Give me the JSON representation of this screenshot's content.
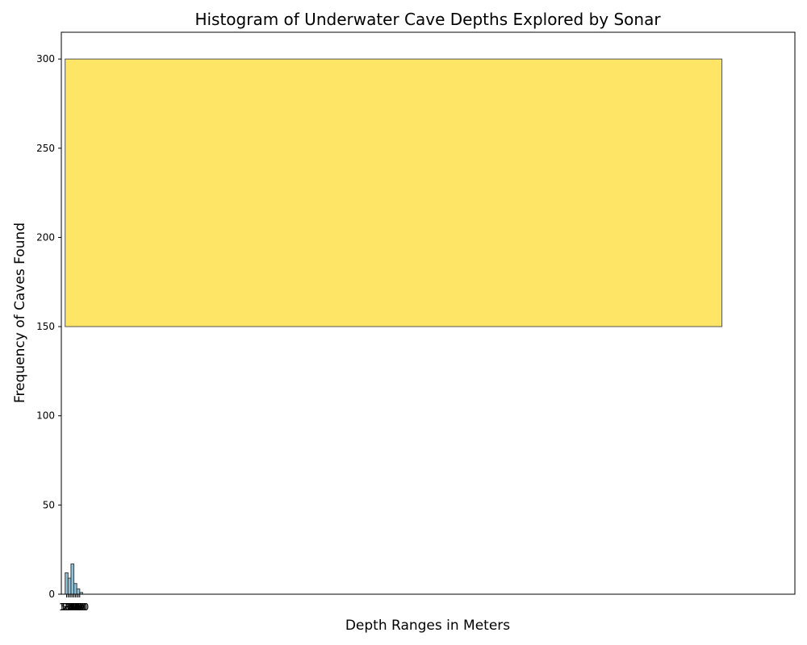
{
  "chart_data": {
    "type": "bar",
    "title": "Histogram of Underwater Cave Depths Explored by Sonar",
    "xlabel": "Depth Ranges in Meters",
    "ylabel": "Frequency of Caves Found",
    "xlim": [
      -130,
      25000
    ],
    "ylim": [
      0,
      315
    ],
    "x_tick_labels": [
      "50",
      "100",
      "150",
      "200",
      "250",
      "300",
      "350",
      "400",
      "450",
      "500"
    ],
    "y_ticks": [
      0,
      50,
      100,
      150,
      200,
      250,
      300
    ],
    "series": [
      {
        "color": "#8fc1d8",
        "edge_color": "#3d3d3d",
        "bins": [
          {
            "start": 0,
            "end": 100,
            "value": 12
          },
          {
            "start": 100,
            "end": 200,
            "value": 9
          },
          {
            "start": 200,
            "end": 300,
            "value": 17
          },
          {
            "start": 300,
            "end": 400,
            "value": 6
          },
          {
            "start": 400,
            "end": 500,
            "value": 3
          },
          {
            "start": 500,
            "end": 600,
            "value": 1
          }
        ]
      },
      {
        "color": "#ffe566",
        "edge_color": "#555555",
        "bins": [
          {
            "start": 0,
            "end": 22500,
            "base": 150,
            "value": 300
          }
        ]
      }
    ],
    "grid": false,
    "legend": "none"
  }
}
